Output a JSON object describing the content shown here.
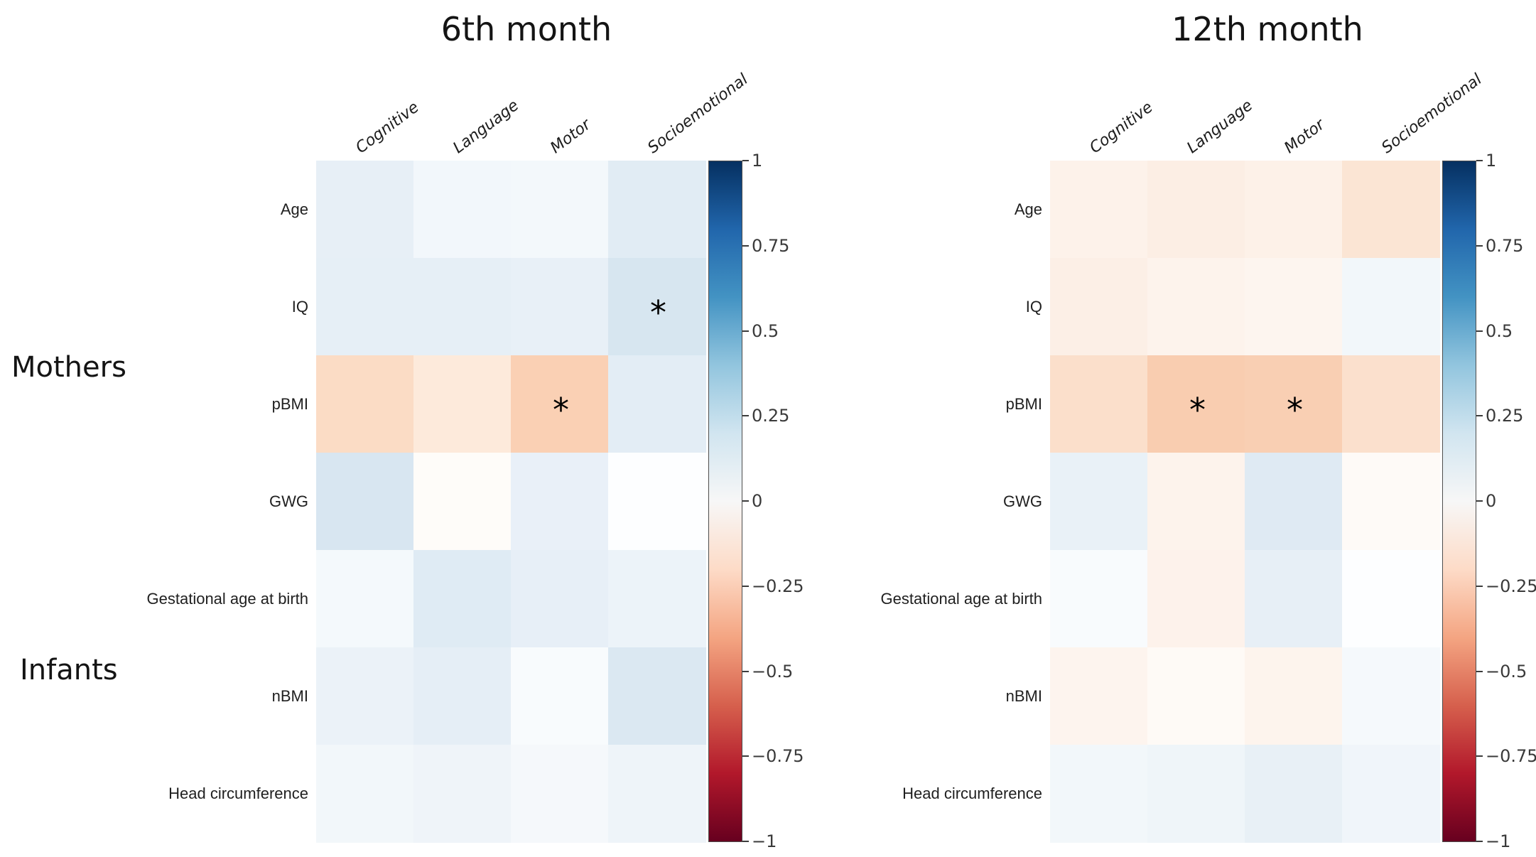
{
  "figure": {
    "background": "#ffffff",
    "group_labels": [
      {
        "text": "Mothers"
      },
      {
        "text": "Infants"
      }
    ]
  },
  "chart_data": [
    {
      "type": "heatmap",
      "title": "6th month",
      "columns": [
        "Cognitive",
        "Language",
        "Motor",
        "Socioemotional"
      ],
      "rows": [
        "Age",
        "IQ",
        "pBMI",
        "GWG",
        "Gestational age at birth",
        "nBMI",
        "Head circumference"
      ],
      "row_groups": [
        {
          "label": "Mothers",
          "rows": [
            "Age",
            "IQ",
            "pBMI",
            "GWG"
          ]
        },
        {
          "label": "Infants",
          "rows": [
            "Gestational age at birth",
            "nBMI",
            "Head circumference"
          ]
        }
      ],
      "values": [
        [
          0.08,
          0.04,
          0.03,
          0.1
        ],
        [
          0.08,
          0.08,
          0.07,
          0.15
        ],
        [
          -0.14,
          -0.08,
          -0.18,
          0.09
        ],
        [
          0.13,
          -0.01,
          0.07,
          0.0
        ],
        [
          0.04,
          0.11,
          0.08,
          0.06
        ],
        [
          0.07,
          0.09,
          0.02,
          0.12
        ],
        [
          0.04,
          0.05,
          0.03,
          0.05
        ]
      ],
      "cell_colors": [
        [
          "#e7eff6",
          "#f2f7fb",
          "#f3f8fb",
          "#e1ecf4"
        ],
        [
          "#e6eff6",
          "#e6eff6",
          "#e8f0f7",
          "#d7e6f0"
        ],
        [
          "#fbdcc5",
          "#fdeadb",
          "#fad0b4",
          "#e3edf5"
        ],
        [
          "#d8e6f1",
          "#fefcf9",
          "#e9f0f8",
          "#fdfeff"
        ],
        [
          "#f4f9fc",
          "#dfebf4",
          "#e7eff7",
          "#ecf3f9"
        ],
        [
          "#ebf2f8",
          "#e5eef6",
          "#f8fbfd",
          "#dbe8f2"
        ],
        [
          "#f2f7fa",
          "#eff4f9",
          "#f5f8fb",
          "#eef4f9"
        ]
      ],
      "significance_marker": "*",
      "significant_cells": [
        {
          "row": "IQ",
          "column": "Socioemotional"
        },
        {
          "row": "pBMI",
          "column": "Motor"
        }
      ],
      "colorbar": {
        "min": -1,
        "max": 1,
        "tick_labels": [
          "1",
          "0.75",
          "0.5",
          "0.25",
          "0",
          "−0.25",
          "−0.5",
          "−0.75",
          "−1"
        ],
        "gradient_top_to_bottom": [
          "#053061",
          "#2166ac",
          "#4393c3",
          "#92c5de",
          "#d1e5f0",
          "#f7f7f7",
          "#fddbc7",
          "#f4a582",
          "#d6604d",
          "#b2182b",
          "#67001f"
        ]
      }
    },
    {
      "type": "heatmap",
      "title": "12th month",
      "columns": [
        "Cognitive",
        "Language",
        "Motor",
        "Socioemotional"
      ],
      "rows": [
        "Age",
        "IQ",
        "pBMI",
        "GWG",
        "Gestational age at birth",
        "nBMI",
        "Head circumference"
      ],
      "row_groups": [
        {
          "label": "Mothers",
          "rows": [
            "Age",
            "IQ",
            "pBMI",
            "GWG"
          ]
        },
        {
          "label": "Infants",
          "rows": [
            "Gestational age at birth",
            "nBMI",
            "Head circumference"
          ]
        }
      ],
      "values": [
        [
          -0.05,
          -0.07,
          -0.05,
          -0.11
        ],
        [
          -0.06,
          -0.05,
          -0.04,
          0.04
        ],
        [
          -0.13,
          -0.2,
          -0.19,
          -0.12
        ],
        [
          0.07,
          -0.05,
          0.11,
          -0.02
        ],
        [
          0.02,
          -0.05,
          0.08,
          0.0
        ],
        [
          -0.04,
          -0.02,
          -0.04,
          0.03
        ],
        [
          0.04,
          0.05,
          0.08,
          0.05
        ]
      ],
      "cell_colors": [
        [
          "#fdf2ea",
          "#fceee4",
          "#fdf1e8",
          "#fbe5d4"
        ],
        [
          "#fcefe6",
          "#fdf3ec",
          "#fdf5ef",
          "#f2f7fa"
        ],
        [
          "#fbdfcb",
          "#f9cdb0",
          "#f9cfb3",
          "#fbe0cd"
        ],
        [
          "#e9f1f7",
          "#fdf3ec",
          "#dfeaf3",
          "#fefaf7"
        ],
        [
          "#f8fbfd",
          "#fdf2eb",
          "#e7eff6",
          "#fdfeff"
        ],
        [
          "#fdf4ee",
          "#fefaf6",
          "#fdf4ed",
          "#f5f9fc"
        ],
        [
          "#f2f7fa",
          "#eff5f9",
          "#e8f0f6",
          "#f0f5fa"
        ]
      ],
      "significance_marker": "*",
      "significant_cells": [
        {
          "row": "pBMI",
          "column": "Language"
        },
        {
          "row": "pBMI",
          "column": "Motor"
        }
      ],
      "colorbar": {
        "min": -1,
        "max": 1,
        "tick_labels": [
          "1",
          "0.75",
          "0.5",
          "0.25",
          "0",
          "−0.25",
          "−0.5",
          "−0.75",
          "−1"
        ],
        "gradient_top_to_bottom": [
          "#053061",
          "#2166ac",
          "#4393c3",
          "#92c5de",
          "#d1e5f0",
          "#f7f7f7",
          "#fddbc7",
          "#f4a582",
          "#d6604d",
          "#b2182b",
          "#67001f"
        ]
      }
    }
  ]
}
